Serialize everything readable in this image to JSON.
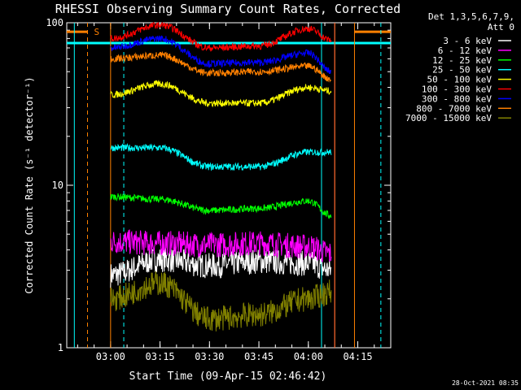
{
  "chart_data": {
    "type": "line",
    "title": "RHESSI Observing Summary Count Rates, Corrected",
    "xlabel": "Start Time (09-Apr-15 02:46:42)",
    "ylabel": "Corrected Count Rate (s⁻¹ detector⁻¹)",
    "x_ticks": [
      "03:00",
      "03:15",
      "03:30",
      "03:45",
      "04:00",
      "04:15"
    ],
    "x_range": [
      "02:46:42",
      "04:25"
    ],
    "ylim": [
      1,
      100
    ],
    "yscale": "log",
    "y_ticks": [
      "1",
      "10",
      "100"
    ],
    "legend_position": "right",
    "legend_header": [
      "Det 1,3,5,6,7,9,",
      "Att 0"
    ],
    "annotation_s": "S",
    "timestamp": "28-Oct-2021 08:35",
    "series": [
      {
        "name": "3 - 6 keV",
        "color": "#ffffff",
        "x": [
          "03:00",
          "03:15",
          "03:30",
          "03:45",
          "04:00",
          "04:07"
        ],
        "y": [
          2.8,
          3.5,
          3.2,
          3.4,
          3.3,
          3.0
        ]
      },
      {
        "name": "6 - 12 keV",
        "color": "#ff00ff",
        "x": [
          "03:00",
          "03:15",
          "03:30",
          "03:45",
          "04:00",
          "04:07"
        ],
        "y": [
          4.5,
          4.4,
          4.3,
          4.4,
          4.2,
          3.8
        ]
      },
      {
        "name": "12 - 25 keV",
        "color": "#00ff00",
        "x": [
          "03:00",
          "03:15",
          "03:30",
          "03:45",
          "04:00",
          "04:07"
        ],
        "y": [
          8.5,
          8.2,
          7.0,
          7.2,
          8.0,
          6.5
        ]
      },
      {
        "name": "25 - 50 keV",
        "color": "#00ffff",
        "x": [
          "03:00",
          "03:15",
          "03:30",
          "03:45",
          "04:00",
          "04:07"
        ],
        "y": [
          17,
          17,
          13,
          13,
          16,
          16
        ]
      },
      {
        "name": "50 - 100 keV",
        "color": "#ffff00",
        "x": [
          "03:00",
          "03:15",
          "03:30",
          "03:45",
          "04:00",
          "04:07"
        ],
        "y": [
          36,
          42,
          32,
          32,
          40,
          38
        ]
      },
      {
        "name": "100 - 300 keV",
        "color": "#ff0000",
        "x": [
          "03:00",
          "03:15",
          "03:30",
          "03:45",
          "04:00",
          "04:07"
        ],
        "y": [
          80,
          97,
          70,
          72,
          92,
          78
        ]
      },
      {
        "name": "300 - 800 keV",
        "color": "#0000ff",
        "x": [
          "03:00",
          "03:15",
          "03:30",
          "03:45",
          "04:00",
          "04:07"
        ],
        "y": [
          70,
          80,
          56,
          57,
          65,
          50
        ]
      },
      {
        "name": "800 - 7000 keV",
        "color": "#ff8000",
        "x": [
          "03:00",
          "03:15",
          "03:30",
          "03:45",
          "04:00",
          "04:07"
        ],
        "y": [
          60,
          63,
          49,
          50,
          54,
          45
        ]
      },
      {
        "name": "7000 - 15000 keV",
        "color": "#808000",
        "x": [
          "03:00",
          "03:15",
          "03:30",
          "03:45",
          "04:00",
          "04:07"
        ],
        "y": [
          2.0,
          2.5,
          1.5,
          1.6,
          2.0,
          2.2
        ]
      }
    ],
    "reference_lines": [
      {
        "kind": "horizontal",
        "y": 75,
        "color": "#00ffff"
      },
      {
        "kind": "horizontal",
        "y": 88,
        "color": "#ff8000",
        "segments": [
          [
            "02:46:42",
            "02:53"
          ],
          [
            "04:14",
            "04:25"
          ]
        ]
      },
      {
        "kind": "vertical",
        "x": "02:49",
        "color": "#00ffff"
      },
      {
        "kind": "vertical",
        "x": "02:53",
        "color": "#ff8000",
        "dashed": true
      },
      {
        "kind": "vertical",
        "x": "03:00",
        "color": "#ff8000"
      },
      {
        "kind": "vertical",
        "x": "03:04",
        "color": "#00ffff",
        "dashed": true
      },
      {
        "kind": "vertical",
        "x": "04:04",
        "color": "#00ffff"
      },
      {
        "kind": "vertical",
        "x": "04:08",
        "color": "#ff00ff"
      },
      {
        "kind": "vertical",
        "x": "04:08",
        "color": "#ff8000"
      },
      {
        "kind": "vertical",
        "x": "04:14",
        "color": "#ff8000"
      },
      {
        "kind": "vertical",
        "x": "04:22",
        "color": "#00ffff",
        "dashed": true
      }
    ]
  }
}
